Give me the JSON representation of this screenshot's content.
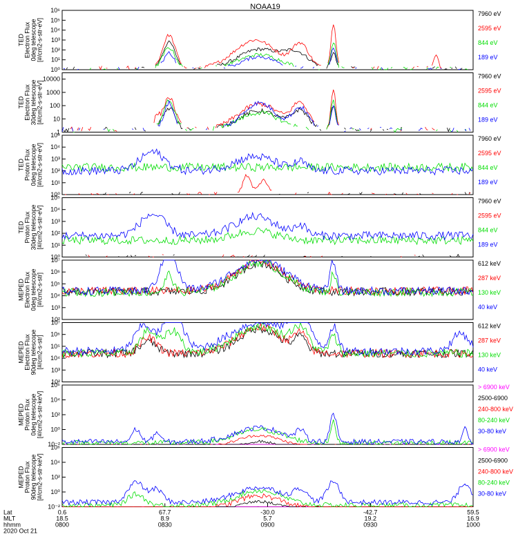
{
  "figure": {
    "title": "NOAA19"
  },
  "chart_data": [
    {
      "type": "line",
      "ylabel": [
        "TED",
        "Electron Flux",
        "0deg telescope",
        "[#/cm2-s-str-eV]"
      ],
      "ylog": true,
      "ylim": [
        1,
        1000000
      ],
      "yticks": [
        {
          "v": 1,
          "t": "10⁰"
        },
        {
          "v": 10,
          "t": "10¹"
        },
        {
          "v": 100,
          "t": "10²"
        },
        {
          "v": 1000,
          "t": "10³"
        },
        {
          "v": 10000,
          "t": "10⁴"
        },
        {
          "v": 100000,
          "t": "10⁵"
        },
        {
          "v": 1000000,
          "t": "10⁶"
        }
      ],
      "series": [
        {
          "name": "7960 eV",
          "color": "#000000",
          "level": 0.16,
          "dense": false,
          "bumps": [
            [
              0.26,
              0.015,
              2.6
            ],
            [
              0.48,
              0.05,
              1.9
            ],
            [
              0.57,
              0.03,
              1.4
            ],
            [
              0.66,
              0.006,
              1.5
            ]
          ]
        },
        {
          "name": "2595 eV",
          "color": "#ff0000",
          "level": 0.2,
          "dense": false,
          "bumps": [
            [
              0.26,
              0.015,
              3.3
            ],
            [
              0.47,
              0.05,
              2.8
            ],
            [
              0.58,
              0.02,
              2.3
            ],
            [
              0.66,
              0.006,
              4.5
            ],
            [
              0.91,
              0.005,
              1.4
            ]
          ]
        },
        {
          "name": "844 eV",
          "color": "#00dd00",
          "level": 0.12,
          "dense": false,
          "bumps": [
            [
              0.26,
              0.015,
              2.1
            ],
            [
              0.48,
              0.05,
              1.4
            ],
            [
              0.66,
              0.006,
              2.7
            ]
          ]
        },
        {
          "name": "189 eV",
          "color": "#0000ff",
          "level": 0.12,
          "dense": false,
          "bumps": [
            [
              0.26,
              0.012,
              1.6
            ],
            [
              0.48,
              0.04,
              1.2
            ],
            [
              0.66,
              0.006,
              2.0
            ]
          ]
        }
      ]
    },
    {
      "type": "line",
      "ylabel": [
        "TED",
        "Electron Flux",
        "30deg telescope",
        "[#/cm2-s-str-eV]"
      ],
      "ylog": true,
      "ylim": [
        1,
        30000
      ],
      "yticks": [
        {
          "v": 1,
          "t": "1"
        },
        {
          "v": 10,
          "t": "10"
        },
        {
          "v": 100,
          "t": "100"
        },
        {
          "v": 1000,
          "t": "1000"
        },
        {
          "v": 10000,
          "t": "10000"
        }
      ],
      "series": [
        {
          "name": "7960 eV",
          "color": "#000000",
          "level": 0.2,
          "dense": false,
          "bumps": [
            [
              0.26,
              0.015,
              1.6
            ],
            [
              0.48,
              0.05,
              1.4
            ],
            [
              0.58,
              0.02,
              1.3
            ],
            [
              0.66,
              0.006,
              1.8
            ]
          ]
        },
        {
          "name": "2595 eV",
          "color": "#ff0000",
          "level": 0.22,
          "dense": false,
          "bumps": [
            [
              0.23,
              0.006,
              0.8
            ],
            [
              0.26,
              0.015,
              2.4
            ],
            [
              0.48,
              0.05,
              1.9
            ],
            [
              0.58,
              0.02,
              1.8
            ],
            [
              0.66,
              0.006,
              3.0
            ]
          ]
        },
        {
          "name": "844 eV",
          "color": "#00dd00",
          "level": 0.16,
          "dense": false,
          "bumps": [
            [
              0.26,
              0.015,
              2.2
            ],
            [
              0.48,
              0.05,
              1.3
            ],
            [
              0.66,
              0.006,
              2.2
            ]
          ]
        },
        {
          "name": "189 eV",
          "color": "#0000ff",
          "level": 0.2,
          "dense": false,
          "bumps": [
            [
              0.26,
              0.012,
              2.0
            ],
            [
              0.48,
              0.04,
              2.0
            ],
            [
              0.58,
              0.02,
              1.6
            ],
            [
              0.66,
              0.006,
              1.8
            ]
          ]
        }
      ]
    },
    {
      "type": "line",
      "ylabel": [
        "TED",
        "Proton Flux",
        "0deg telescope",
        "[#/cm2-s-str-eV]"
      ],
      "ylog": true,
      "ylim": [
        1,
        100000
      ],
      "yticks": [
        {
          "v": 1,
          "t": "10⁰"
        },
        {
          "v": 10,
          "t": "10¹"
        },
        {
          "v": 100,
          "t": "10²"
        },
        {
          "v": 1000,
          "t": "10³"
        },
        {
          "v": 10000,
          "t": "10⁴"
        },
        {
          "v": 100000,
          "t": "10⁵"
        }
      ],
      "series": [
        {
          "name": "7960 eV",
          "color": "#000000",
          "level": 0.05,
          "dense": false,
          "bumps": []
        },
        {
          "name": "2595 eV",
          "color": "#ff0000",
          "level": 0.05,
          "dense": false,
          "bumps": [
            [
              0.45,
              0.01,
              1.6
            ],
            [
              0.49,
              0.01,
              1.3
            ]
          ]
        },
        {
          "name": "844 eV",
          "color": "#00dd00",
          "level": 2.3,
          "dense": true,
          "bumps": []
        },
        {
          "name": "189 eV",
          "color": "#0000ff",
          "level": 2.0,
          "dense": true,
          "bumps": [
            [
              0.22,
              0.03,
              1.6
            ],
            [
              0.47,
              0.05,
              1.2
            ],
            [
              0.58,
              0.015,
              0.7
            ]
          ]
        }
      ]
    },
    {
      "type": "line",
      "ylabel": [
        "TED",
        "Proton Flux",
        "30deg telescope",
        "[#/cm2-s-str-eV]"
      ],
      "ylog": true,
      "ylim": [
        1,
        100000
      ],
      "yticks": [
        {
          "v": 1,
          "t": "10⁰"
        },
        {
          "v": 10,
          "t": "10¹"
        },
        {
          "v": 100,
          "t": "10²"
        },
        {
          "v": 1000,
          "t": "10³"
        },
        {
          "v": 10000,
          "t": "10⁴"
        },
        {
          "v": 100000,
          "t": "10⁵"
        }
      ],
      "series": [
        {
          "name": "7960 eV",
          "color": "#000000",
          "level": 0.05,
          "dense": false,
          "bumps": []
        },
        {
          "name": "2595 eV",
          "color": "#ff0000",
          "level": 0.05,
          "dense": false,
          "bumps": []
        },
        {
          "name": "844 eV",
          "color": "#00dd00",
          "level": 1.4,
          "dense": true,
          "bumps": [
            [
              0.47,
              0.05,
              0.8
            ]
          ]
        },
        {
          "name": "189 eV",
          "color": "#0000ff",
          "level": 1.8,
          "dense": true,
          "bumps": [
            [
              0.22,
              0.03,
              1.8
            ],
            [
              0.47,
              0.05,
              1.6
            ],
            [
              0.58,
              0.015,
              0.8
            ]
          ]
        }
      ]
    },
    {
      "type": "line",
      "ylabel": [
        "MEPED",
        "Electron Flux",
        "0deg telescope",
        "[#/cm2-s-str]"
      ],
      "ylog": true,
      "ylim": [
        100,
        10000000
      ],
      "yticks": [
        {
          "v": 100,
          "t": "10²"
        },
        {
          "v": 1000,
          "t": "10³"
        },
        {
          "v": 10000,
          "t": "10⁴"
        },
        {
          "v": 100000,
          "t": "10⁵"
        },
        {
          "v": 1000000,
          "t": "10⁶"
        },
        {
          "v": 10000000,
          "t": "10⁷"
        }
      ],
      "series": [
        {
          "name": "612 keV",
          "color": "#000000",
          "level": 2.35,
          "dense": true,
          "bumps": [
            [
              0.48,
              0.055,
              2.4
            ]
          ]
        },
        {
          "name": "287 keV",
          "color": "#ff0000",
          "level": 2.4,
          "dense": true,
          "bumps": [
            [
              0.48,
              0.058,
              2.5
            ]
          ]
        },
        {
          "name": "130 keV",
          "color": "#00dd00",
          "level": 2.3,
          "dense": true,
          "bumps": [
            [
              0.26,
              0.01,
              1.5
            ],
            [
              0.48,
              0.058,
              2.5
            ],
            [
              0.66,
              0.006,
              1.6
            ]
          ]
        },
        {
          "name": "40 keV",
          "color": "#0000ff",
          "level": 2.4,
          "dense": true,
          "bumps": [
            [
              0.26,
              0.02,
              3.2
            ],
            [
              0.48,
              0.065,
              2.6
            ],
            [
              0.66,
              0.007,
              2.5
            ]
          ]
        }
      ]
    },
    {
      "type": "line",
      "ylabel": [
        "MEPED",
        "Electron Flux",
        "90deg telescope",
        "[#/cm2-s-str]"
      ],
      "ylog": true,
      "ylim": [
        100,
        10000000
      ],
      "yticks": [
        {
          "v": 100,
          "t": "10²"
        },
        {
          "v": 1000,
          "t": "10³"
        },
        {
          "v": 10000,
          "t": "10⁴"
        },
        {
          "v": 100000,
          "t": "10⁵"
        },
        {
          "v": 1000000,
          "t": "10⁶"
        },
        {
          "v": 10000000,
          "t": "10⁷"
        }
      ],
      "series": [
        {
          "name": "612 keV",
          "color": "#000000",
          "level": 2.4,
          "dense": true,
          "bumps": [
            [
              0.21,
              0.02,
              1.0
            ],
            [
              0.48,
              0.05,
              2.1
            ],
            [
              0.58,
              0.015,
              1.2
            ]
          ]
        },
        {
          "name": "287 keV",
          "color": "#ff0000",
          "level": 2.4,
          "dense": true,
          "bumps": [
            [
              0.21,
              0.02,
              1.3
            ],
            [
              0.48,
              0.055,
              2.2
            ],
            [
              0.58,
              0.015,
              1.4
            ]
          ]
        },
        {
          "name": "130 keV",
          "color": "#00dd00",
          "level": 2.4,
          "dense": true,
          "bumps": [
            [
              0.21,
              0.02,
              1.9
            ],
            [
              0.27,
              0.02,
              1.9
            ],
            [
              0.48,
              0.06,
              2.3
            ],
            [
              0.58,
              0.02,
              1.8
            ],
            [
              0.66,
              0.01,
              1.4
            ]
          ]
        },
        {
          "name": "40 keV",
          "color": "#0000ff",
          "level": 2.6,
          "dense": true,
          "bumps": [
            [
              0.2,
              0.022,
              2.2
            ],
            [
              0.27,
              0.022,
              3.5
            ],
            [
              0.48,
              0.07,
              2.4
            ],
            [
              0.58,
              0.025,
              2.3
            ],
            [
              0.66,
              0.01,
              2.0
            ],
            [
              0.97,
              0.02,
              1.5
            ]
          ]
        }
      ]
    },
    {
      "type": "line",
      "ylabel": [
        "MEPED",
        "Proton Flux",
        "0deg telescope",
        "[#/cm2-s-str-keV]"
      ],
      "ylog": true,
      "ylim": [
        0.01,
        1000000
      ],
      "yticks": [
        {
          "v": 0.01,
          "t": "10⁻²"
        },
        {
          "v": 1,
          "t": "10⁰"
        },
        {
          "v": 100,
          "t": "10²"
        },
        {
          "v": 10000,
          "t": "10⁴"
        },
        {
          "v": 1000000,
          "t": "10⁶"
        }
      ],
      "series": [
        {
          "name": "> 6900 keV",
          "color": "#ff00ff",
          "level": -2.2,
          "dense": false,
          "bumps": [
            [
              0.48,
              0.055,
              1.9
            ]
          ]
        },
        {
          "name": "2500-6900",
          "color": "#000000",
          "level": -1.3,
          "dense": false,
          "bumps": [
            [
              0.48,
              0.055,
              1.7
            ]
          ]
        },
        {
          "name": "240-800 keV",
          "color": "#ff0000",
          "level": -0.4,
          "dense": false,
          "bumps": [
            [
              0.48,
              0.055,
              1.6
            ]
          ]
        },
        {
          "name": "80-240 keV",
          "color": "#00dd00",
          "level": 0.2,
          "dense": true,
          "bumps": [
            [
              0.48,
              0.055,
              1.8
            ],
            [
              0.66,
              0.006,
              2.8
            ]
          ]
        },
        {
          "name": "30-80 keV",
          "color": "#0000ff",
          "level": 0.35,
          "dense": true,
          "bumps": [
            [
              0.18,
              0.01,
              1.7
            ],
            [
              0.23,
              0.008,
              1.3
            ],
            [
              0.48,
              0.058,
              1.9
            ],
            [
              0.58,
              0.01,
              1.3
            ],
            [
              0.66,
              0.008,
              3.6
            ],
            [
              0.98,
              0.006,
              1.7
            ]
          ]
        }
      ]
    },
    {
      "type": "line",
      "ylabel": [
        "MEPED",
        "Proton Flux",
        "90deg telescope",
        "[#/cm2-s-str-keV]"
      ],
      "ylog": true,
      "ylim": [
        0.01,
        1000000
      ],
      "yticks": [
        {
          "v": 0.01,
          "t": "10⁻²"
        },
        {
          "v": 1,
          "t": "10⁰"
        },
        {
          "v": 100,
          "t": "10²"
        },
        {
          "v": 10000,
          "t": "10⁴"
        },
        {
          "v": 1000000,
          "t": "10⁶"
        }
      ],
      "series": [
        {
          "name": "> 6900 keV",
          "color": "#ff00ff",
          "level": -1.7,
          "dense": false,
          "bumps": [
            [
              0.48,
              0.055,
              1.6
            ]
          ]
        },
        {
          "name": "2500-6900",
          "color": "#000000",
          "level": -0.7,
          "dense": false,
          "bumps": [
            [
              0.48,
              0.055,
              1.4
            ]
          ]
        },
        {
          "name": "240-800 keV",
          "color": "#ff0000",
          "level": -0.3,
          "dense": true,
          "bumps": [
            [
              0.48,
              0.055,
              1.8
            ]
          ]
        },
        {
          "name": "80-240 keV",
          "color": "#00dd00",
          "level": 0.2,
          "dense": true,
          "bumps": [
            [
              0.18,
              0.02,
              1.5
            ],
            [
              0.48,
              0.055,
              2.0
            ]
          ]
        },
        {
          "name": "30-80 keV",
          "color": "#0000ff",
          "level": 0.6,
          "dense": true,
          "bumps": [
            [
              0.18,
              0.02,
              2.7
            ],
            [
              0.23,
              0.015,
              1.7
            ],
            [
              0.48,
              0.058,
              2.0
            ],
            [
              0.58,
              0.015,
              1.5
            ],
            [
              0.66,
              0.015,
              2.8
            ],
            [
              0.98,
              0.015,
              2.6
            ]
          ]
        }
      ]
    }
  ],
  "time_axis": {
    "row_labels": [
      "Lat",
      "MLT",
      "hhmm",
      "2020 Oct 21"
    ],
    "ticks": [
      {
        "frac": 0.0,
        "lat": "0.6",
        "mlt": "18.5",
        "hhmm": "0800"
      },
      {
        "frac": 0.25,
        "lat": "67.7",
        "mlt": "8.9",
        "hhmm": "0830"
      },
      {
        "frac": 0.5,
        "lat": "-30.0",
        "mlt": "5.7",
        "hhmm": "0900"
      },
      {
        "frac": 0.75,
        "lat": "-42.7",
        "mlt": "19.2",
        "hhmm": "0930"
      },
      {
        "frac": 1.0,
        "lat": "59.5",
        "mlt": "16.9",
        "hhmm": "1000"
      }
    ]
  }
}
